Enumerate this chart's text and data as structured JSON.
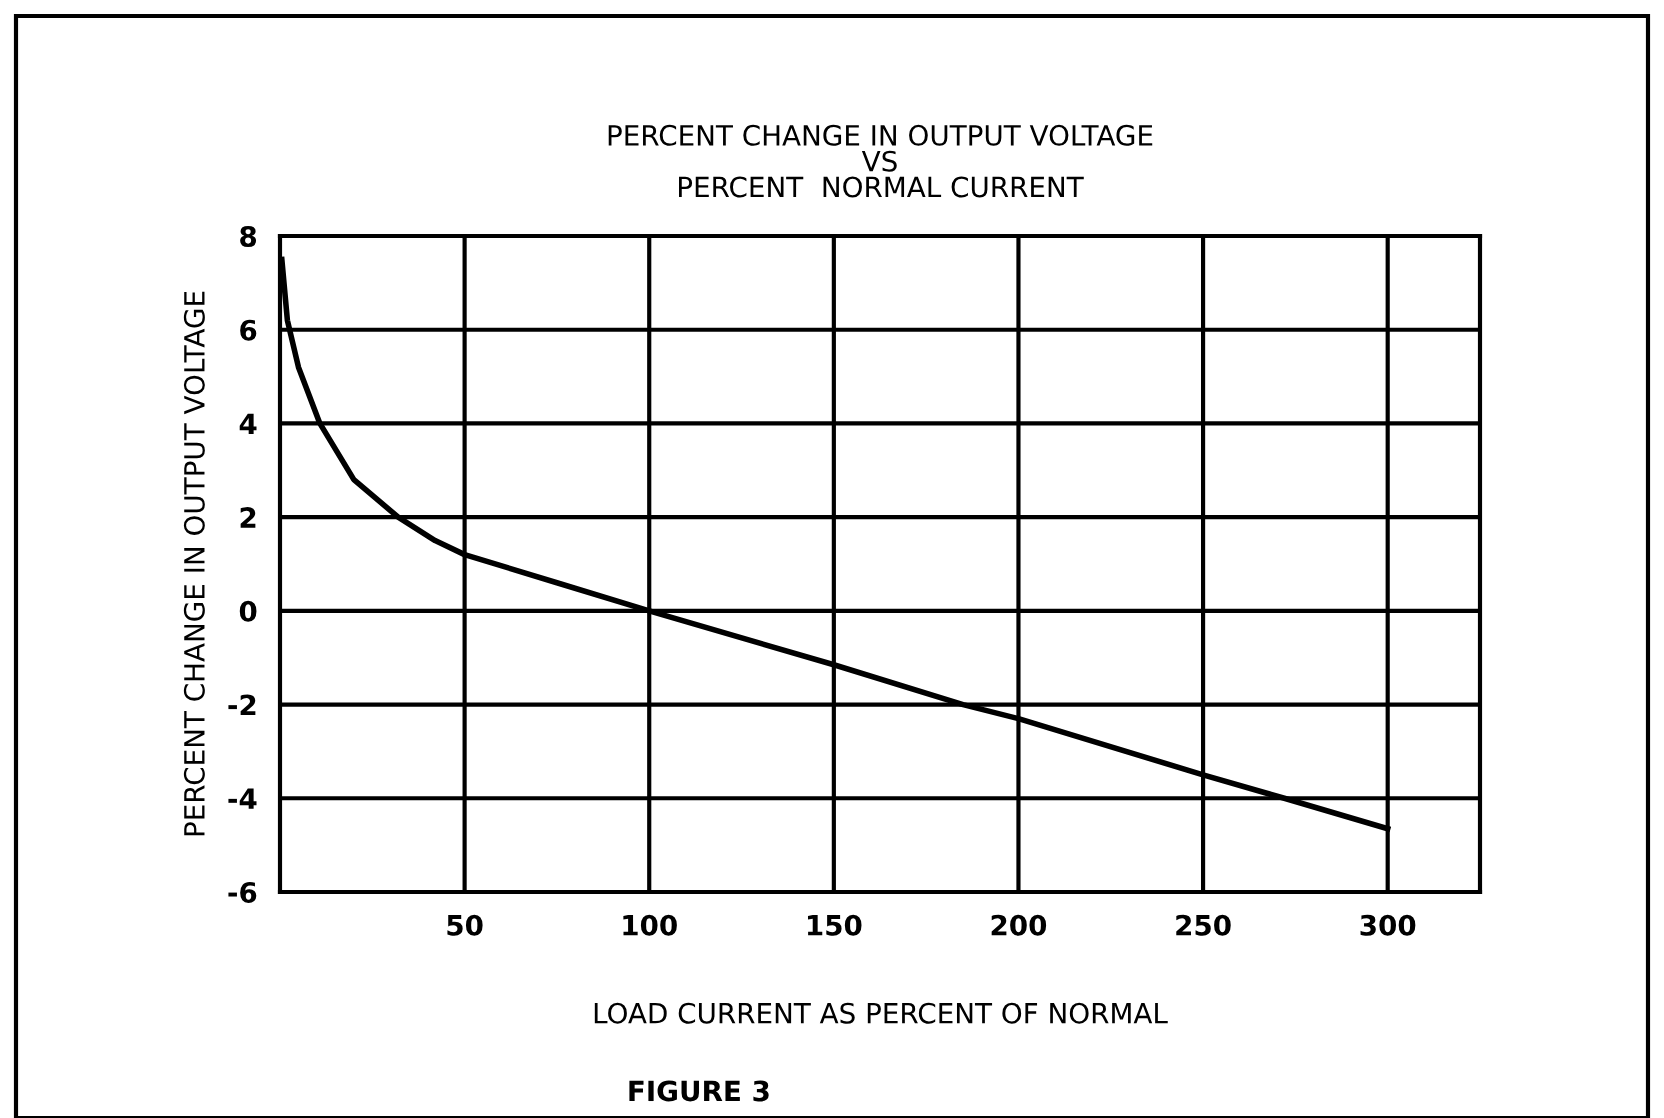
{
  "chart_data": {
    "type": "line",
    "title": "PERCENT CHANGE IN OUTPUT VOLTAGE\nVS\nPERCENT  NORMAL CURRENT",
    "xlabel": "LOAD CURRENT AS PERCENT OF NORMAL",
    "ylabel": "PERCENT CHANGE IN OUTPUT VOLTAGE",
    "x": [
      0.5,
      2,
      5,
      10.8,
      20,
      32,
      42,
      50,
      75,
      100,
      150,
      185,
      200,
      250,
      272,
      300
    ],
    "series": [
      {
        "color": "#000000",
        "values": [
          7.5,
          6.2,
          5.2,
          4.0,
          2.8,
          2.0,
          1.5,
          1.2,
          0.6,
          0,
          -1.15,
          -2,
          -2.3,
          -3.5,
          -4,
          -4.65
        ]
      }
    ],
    "xlim": [
      0,
      325
    ],
    "xticks": [
      50,
      100,
      150,
      200,
      250,
      300
    ],
    "ylim": [
      -6,
      8
    ],
    "yticks": [
      -6,
      -4,
      -2,
      0,
      2,
      4,
      6,
      8
    ],
    "grid": true,
    "legend": false,
    "marker": "none",
    "line_style": "solid",
    "annotations": [
      "FIGURE 3"
    ]
  }
}
